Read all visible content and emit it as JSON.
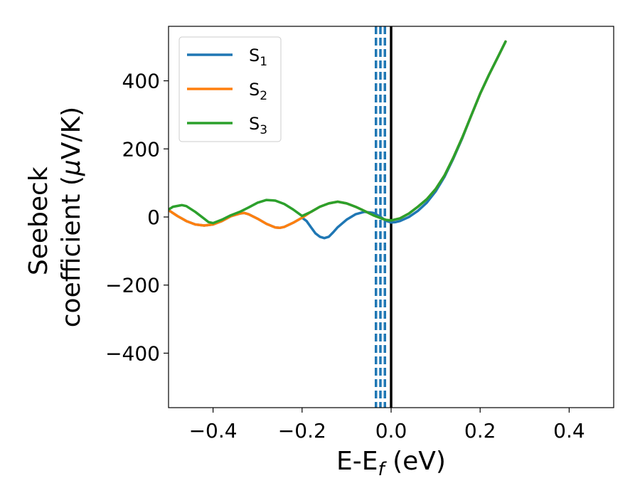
{
  "chart_data": {
    "type": "line",
    "xlabel": "E-E",
    "xlabel_sub": "f",
    "xlabel_unit": " (eV)",
    "ylabel_line1": "Seebeck",
    "ylabel_line2": "coefficient  (",
    "ylabel_mu": "μ",
    "ylabel_unit": "V/K)",
    "xlim": [
      -0.5,
      0.5
    ],
    "ylim": [
      -560,
      560
    ],
    "xticks": [
      -0.4,
      -0.2,
      0.0,
      0.2,
      0.4
    ],
    "xtick_labels": [
      "−0.4",
      "−0.2",
      "0.0",
      "0.2",
      "0.4"
    ],
    "yticks": [
      400,
      200,
      0,
      -200,
      -400
    ],
    "ytick_labels": [
      "400",
      "200",
      "0",
      "−200",
      "−400"
    ],
    "grid": false,
    "legend_position": "top-left",
    "vlines": {
      "solid": {
        "x": 0.0,
        "color": "#000000"
      },
      "dashed": {
        "x": [
          -0.034,
          -0.024,
          -0.014
        ],
        "color": "#1f77b4"
      }
    },
    "series": [
      {
        "name": "S",
        "sub": "1",
        "color": "#1f77b4",
        "points": [
          [
            -0.5,
            20
          ],
          [
            -0.48,
            3
          ],
          [
            -0.46,
            -12
          ],
          [
            -0.44,
            -22
          ],
          [
            -0.42,
            -25
          ],
          [
            -0.4,
            -22
          ],
          [
            -0.38,
            -12
          ],
          [
            -0.36,
            2
          ],
          [
            -0.34,
            10
          ],
          [
            -0.33,
            12
          ],
          [
            -0.32,
            8
          ],
          [
            -0.3,
            -5
          ],
          [
            -0.28,
            -20
          ],
          [
            -0.26,
            -31
          ],
          [
            -0.25,
            -32
          ],
          [
            -0.24,
            -29
          ],
          [
            -0.22,
            -17
          ],
          [
            -0.2,
            -2
          ],
          [
            -0.19,
            -12
          ],
          [
            -0.18,
            -30
          ],
          [
            -0.17,
            -48
          ],
          [
            -0.16,
            -58
          ],
          [
            -0.15,
            -62
          ],
          [
            -0.14,
            -58
          ],
          [
            -0.13,
            -45
          ],
          [
            -0.12,
            -30
          ],
          [
            -0.1,
            -8
          ],
          [
            -0.08,
            8
          ],
          [
            -0.06,
            15
          ],
          [
            -0.04,
            12
          ],
          [
            -0.03,
            5
          ],
          [
            -0.02,
            -3
          ],
          [
            -0.01,
            -12
          ],
          [
            0.0,
            -16
          ],
          [
            0.01,
            -15
          ],
          [
            0.02,
            -12
          ],
          [
            0.04,
            0
          ],
          [
            0.06,
            18
          ],
          [
            0.08,
            42
          ],
          [
            0.1,
            75
          ],
          [
            0.12,
            118
          ],
          [
            0.14,
            172
          ],
          [
            0.16,
            232
          ],
          [
            0.18,
            298
          ],
          [
            0.2,
            362
          ],
          [
            0.22,
            418
          ],
          [
            0.24,
            470
          ],
          [
            0.257,
            515
          ]
        ]
      },
      {
        "name": "S",
        "sub": "2",
        "color": "#ff7f0e",
        "points": [
          [
            -0.5,
            20
          ],
          [
            -0.48,
            3
          ],
          [
            -0.46,
            -12
          ],
          [
            -0.44,
            -22
          ],
          [
            -0.42,
            -25
          ],
          [
            -0.4,
            -22
          ],
          [
            -0.38,
            -12
          ],
          [
            -0.36,
            2
          ],
          [
            -0.34,
            10
          ],
          [
            -0.33,
            12
          ],
          [
            -0.32,
            8
          ],
          [
            -0.3,
            -5
          ],
          [
            -0.28,
            -20
          ],
          [
            -0.26,
            -31
          ],
          [
            -0.25,
            -32
          ],
          [
            -0.24,
            -29
          ],
          [
            -0.22,
            -17
          ],
          [
            -0.2,
            -2
          ],
          [
            -0.18,
            15
          ],
          [
            -0.16,
            30
          ],
          [
            -0.14,
            40
          ],
          [
            -0.12,
            45
          ],
          [
            -0.1,
            40
          ],
          [
            -0.08,
            30
          ],
          [
            -0.06,
            18
          ],
          [
            -0.04,
            5
          ],
          [
            -0.02,
            -5
          ],
          [
            -0.01,
            -9
          ],
          [
            0.0,
            -10
          ],
          [
            0.02,
            -4
          ],
          [
            0.04,
            10
          ],
          [
            0.06,
            30
          ],
          [
            0.08,
            52
          ],
          [
            0.1,
            82
          ],
          [
            0.12,
            122
          ],
          [
            0.14,
            175
          ],
          [
            0.16,
            234
          ],
          [
            0.18,
            298
          ],
          [
            0.2,
            362
          ],
          [
            0.22,
            418
          ],
          [
            0.24,
            470
          ],
          [
            0.257,
            515
          ]
        ]
      },
      {
        "name": "S",
        "sub": "3",
        "color": "#2ca02c",
        "points": [
          [
            -0.5,
            22
          ],
          [
            -0.49,
            30
          ],
          [
            -0.47,
            35
          ],
          [
            -0.46,
            32
          ],
          [
            -0.44,
            15
          ],
          [
            -0.42,
            -5
          ],
          [
            -0.41,
            -15
          ],
          [
            -0.4,
            -18
          ],
          [
            -0.38,
            -8
          ],
          [
            -0.36,
            5
          ],
          [
            -0.34,
            15
          ],
          [
            -0.32,
            28
          ],
          [
            -0.3,
            42
          ],
          [
            -0.28,
            50
          ],
          [
            -0.26,
            48
          ],
          [
            -0.24,
            38
          ],
          [
            -0.22,
            22
          ],
          [
            -0.2,
            3
          ],
          [
            -0.18,
            15
          ],
          [
            -0.16,
            30
          ],
          [
            -0.14,
            40
          ],
          [
            -0.12,
            45
          ],
          [
            -0.1,
            40
          ],
          [
            -0.08,
            30
          ],
          [
            -0.06,
            18
          ],
          [
            -0.04,
            5
          ],
          [
            -0.02,
            -5
          ],
          [
            -0.01,
            -9
          ],
          [
            0.0,
            -10
          ],
          [
            0.02,
            -4
          ],
          [
            0.04,
            10
          ],
          [
            0.06,
            30
          ],
          [
            0.08,
            52
          ],
          [
            0.1,
            82
          ],
          [
            0.12,
            122
          ],
          [
            0.14,
            175
          ],
          [
            0.16,
            234
          ],
          [
            0.18,
            298
          ],
          [
            0.2,
            362
          ],
          [
            0.22,
            418
          ],
          [
            0.24,
            470
          ],
          [
            0.257,
            515
          ]
        ]
      }
    ]
  }
}
